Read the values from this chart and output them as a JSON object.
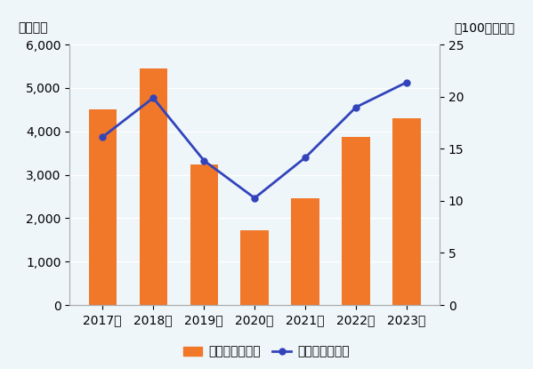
{
  "years": [
    "2017年",
    "2018年",
    "2019年",
    "2020年",
    "2021年",
    "2022年",
    "2023年"
  ],
  "volume": [
    4513,
    5444,
    3227,
    1720,
    2459,
    3882,
    4298
  ],
  "value": [
    16.12,
    19.88,
    13.87,
    10.27,
    14.16,
    18.99,
    21.38
  ],
  "bar_color": "#F07828",
  "line_color": "#3344BB",
  "bg_color": "#EEF6FA",
  "left_ylabel": "（トン）",
  "right_ylabel": "（100万ドル）",
  "left_ylim": [
    0,
    6000
  ],
  "right_ylim": [
    0,
    25
  ],
  "left_yticks": [
    0,
    1000,
    2000,
    3000,
    4000,
    5000,
    6000
  ],
  "right_yticks": [
    0,
    5,
    10,
    15,
    20,
    25
  ],
  "legend_bar": "輸入量（左軸）",
  "legend_line": "輸入額（右軸）",
  "tick_fontsize": 10,
  "legend_fontsize": 10,
  "label_fontsize": 10
}
